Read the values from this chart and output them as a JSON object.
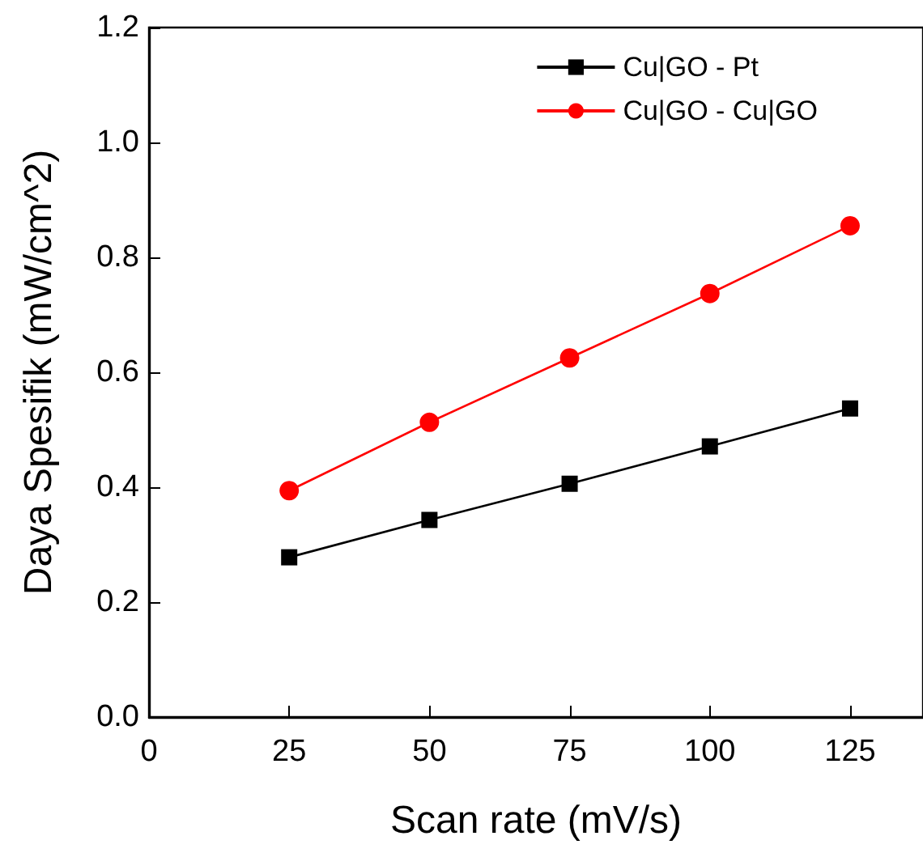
{
  "chart_data": {
    "type": "line",
    "xlabel": "Scan rate (mV/s)",
    "ylabel": "Daya Spesifik (mW/cm^2)",
    "x": [
      25,
      50,
      75,
      100,
      125
    ],
    "series": [
      {
        "name": "Cu|GO - Pt",
        "color": "#000000",
        "marker": "square",
        "values": [
          0.278,
          0.343,
          0.406,
          0.471,
          0.537
        ]
      },
      {
        "name": "Cu|GO - Cu|GO",
        "color": "#ff0000",
        "marker": "circle",
        "values": [
          0.394,
          0.513,
          0.625,
          0.737,
          0.855
        ]
      }
    ],
    "xlim": [
      0,
      138
    ],
    "xticks": [
      0,
      25,
      50,
      75,
      100,
      125
    ],
    "ylim": [
      0,
      1.2
    ],
    "yticks": [
      {
        "value": 0,
        "label": "0.0"
      },
      0.2,
      0.4,
      0.6,
      0.8,
      {
        "value": 1,
        "label": "1.0"
      },
      1.2
    ],
    "grid": false,
    "legend": "top right",
    "line_style": "solid"
  }
}
